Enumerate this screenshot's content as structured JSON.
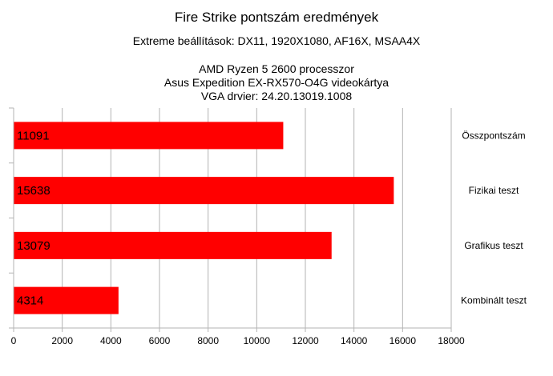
{
  "chart_data": {
    "type": "bar",
    "orientation": "horizontal",
    "title": "Fire Strike pontszám eredmények",
    "subtitle": "Extreme beállítások: DX11, 1920X1080, AF16X, MSAA4X",
    "subtitle_lines": [
      "AMD Ryzen 5 2600 processzor",
      "Asus Expedition EX-RX570-O4G videokártya",
      "VGA drvier: 24.20.13019.1008"
    ],
    "categories": [
      "Összpontszám",
      "Fizikai teszt",
      "Grafikus teszt",
      "Kombinált teszt"
    ],
    "values": [
      11091,
      15638,
      13079,
      4314
    ],
    "xlim": [
      0,
      18000
    ],
    "xticks": [
      0,
      2000,
      4000,
      6000,
      8000,
      10000,
      12000,
      14000,
      16000,
      18000
    ],
    "xlabel": "",
    "ylabel": "",
    "category_labels_side": "right",
    "data_labels": "inside-base",
    "grid": true,
    "legend": "none",
    "colors": {
      "bar": "#ff0000",
      "grid": "#b3b3b3",
      "axis": "#b3b3b3"
    }
  }
}
